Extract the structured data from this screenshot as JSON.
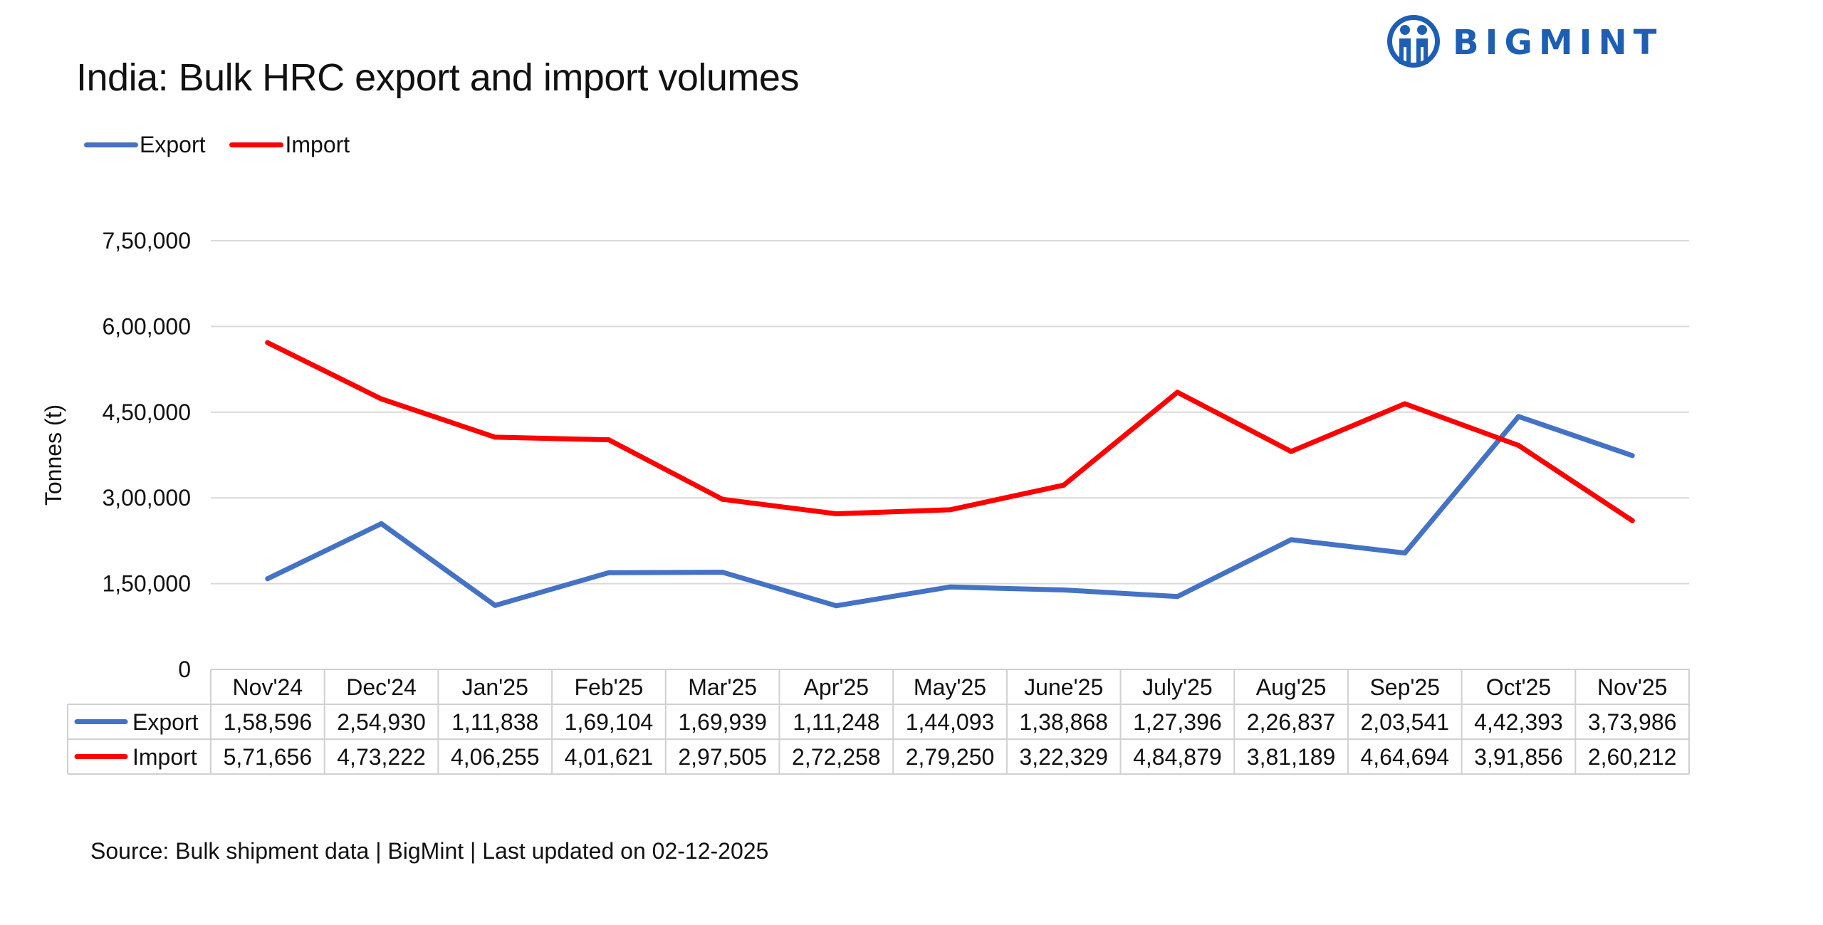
{
  "header": {
    "title": "India: Bulk HRC export and import volumes",
    "brand": "BIGMINT"
  },
  "colors": {
    "export": "#4472C4",
    "import": "#FF0000",
    "brand": "#1E5FB4",
    "grid": "#D9D9D9"
  },
  "footer": {
    "source": "Source: Bulk shipment data | BigMint | Last updated on 02-12-2025"
  },
  "chart_data": {
    "type": "line",
    "title": "India: Bulk HRC export and import volumes",
    "xlabel": "",
    "ylabel": "Tonnes (t)",
    "ylim": [
      0,
      750000
    ],
    "yticks": [
      0,
      150000,
      300000,
      450000,
      600000,
      750000
    ],
    "ytick_labels": [
      "0",
      "1,50,000",
      "3,00,000",
      "4,50,000",
      "6,00,000",
      "7,50,000"
    ],
    "grid": true,
    "legend_position": "top-left",
    "categories": [
      "Nov'24",
      "Dec'24",
      "Jan'25",
      "Feb'25",
      "Mar'25",
      "Apr'25",
      "May'25",
      "June'25",
      "July'25",
      "Aug'25",
      "Sep'25",
      "Oct'25",
      "Nov'25"
    ],
    "series": [
      {
        "name": "Export",
        "color": "#4472C4",
        "values": [
          158596,
          254930,
          111838,
          169104,
          169939,
          111248,
          144093,
          138868,
          127396,
          226837,
          203541,
          442393,
          373986
        ],
        "labels": [
          "1,58,596",
          "2,54,930",
          "1,11,838",
          "1,69,104",
          "1,69,939",
          "1,11,248",
          "1,44,093",
          "1,38,868",
          "1,27,396",
          "2,26,837",
          "2,03,541",
          "4,42,393",
          "3,73,986"
        ]
      },
      {
        "name": "Import",
        "color": "#FF0000",
        "values": [
          571656,
          473222,
          406255,
          401621,
          297505,
          272258,
          279250,
          322329,
          484879,
          381189,
          464694,
          391856,
          260212
        ],
        "labels": [
          "5,71,656",
          "4,73,222",
          "4,06,255",
          "4,01,621",
          "2,97,505",
          "2,72,258",
          "2,79,250",
          "3,22,329",
          "4,84,879",
          "3,81,189",
          "4,64,694",
          "3,91,856",
          "2,60,212"
        ]
      }
    ]
  }
}
